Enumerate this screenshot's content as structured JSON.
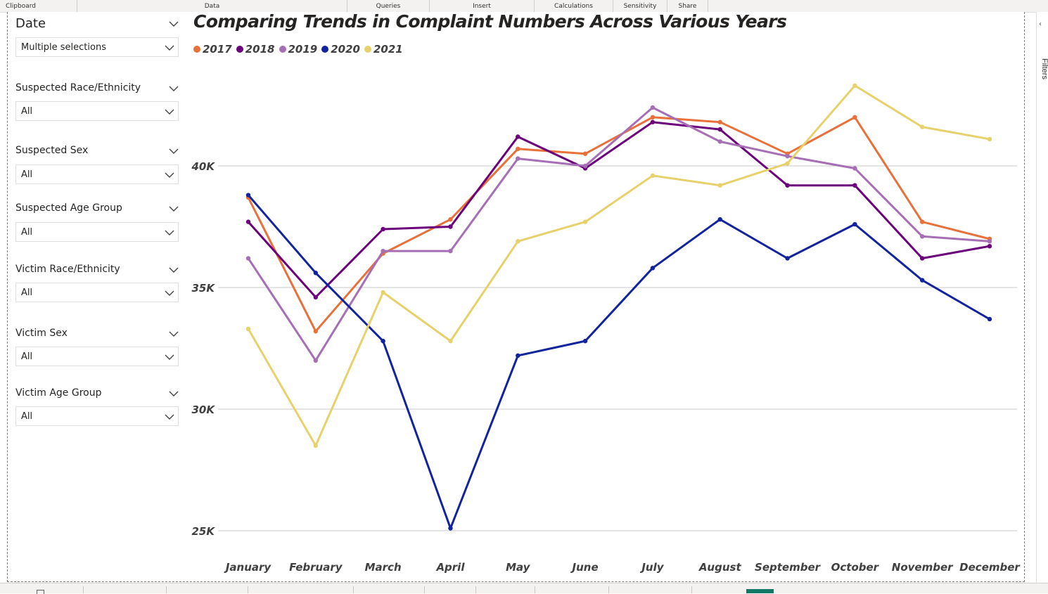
{
  "ribbon": {
    "groups": [
      "Clipboard",
      "Data",
      "Queries",
      "Insert",
      "Calculations",
      "Sensitivity",
      "Share"
    ]
  },
  "right_pane": {
    "label": "Filters"
  },
  "slicers": [
    {
      "title": "Date",
      "value": "Multiple selections"
    },
    {
      "title": "Suspected Race/Ethnicity",
      "value": "All"
    },
    {
      "title": "Suspected Sex",
      "value": "All"
    },
    {
      "title": "Suspected Age Group",
      "value": "All"
    },
    {
      "title": "Victim Race/Ethnicity",
      "value": "All"
    },
    {
      "title": "Victim Sex",
      "value": "All"
    },
    {
      "title": "Victim Age Group",
      "value": "All"
    }
  ],
  "chart_data": {
    "type": "line",
    "title": "Comparing Trends in Complaint Numbers Across Various Years",
    "xlabel": "",
    "ylabel": "",
    "categories": [
      "January",
      "February",
      "March",
      "April",
      "May",
      "June",
      "July",
      "August",
      "September",
      "October",
      "November",
      "December"
    ],
    "yticks": [
      25000,
      30000,
      35000,
      40000
    ],
    "ytick_labels": [
      "25K",
      "30K",
      "35K",
      "40K"
    ],
    "ylim": [
      24700,
      44700
    ],
    "grid": true,
    "legend_position": "top-left",
    "series": [
      {
        "name": "2017",
        "color": "#e8703a",
        "values": [
          38700,
          33200,
          36400,
          37800,
          40700,
          40500,
          42000,
          41800,
          40500,
          42000,
          37700,
          37000
        ]
      },
      {
        "name": "2018",
        "color": "#6b007b",
        "values": [
          37700,
          34600,
          37400,
          37500,
          41200,
          39900,
          41800,
          41500,
          39200,
          39200,
          36200,
          36700
        ]
      },
      {
        "name": "2019",
        "color": "#a66fb5",
        "values": [
          36200,
          32000,
          36500,
          36500,
          40300,
          40000,
          42400,
          41000,
          40400,
          39900,
          37100,
          36900
        ]
      },
      {
        "name": "2020",
        "color": "#12239e",
        "values": [
          38800,
          35600,
          32800,
          25100,
          32200,
          32800,
          35800,
          37800,
          36200,
          37600,
          35300,
          33700
        ]
      },
      {
        "name": "2021",
        "color": "#e6d16b",
        "values": [
          33300,
          28500,
          34800,
          32800,
          36900,
          37700,
          39600,
          39200,
          40100,
          43300,
          41600,
          41100
        ]
      }
    ]
  }
}
